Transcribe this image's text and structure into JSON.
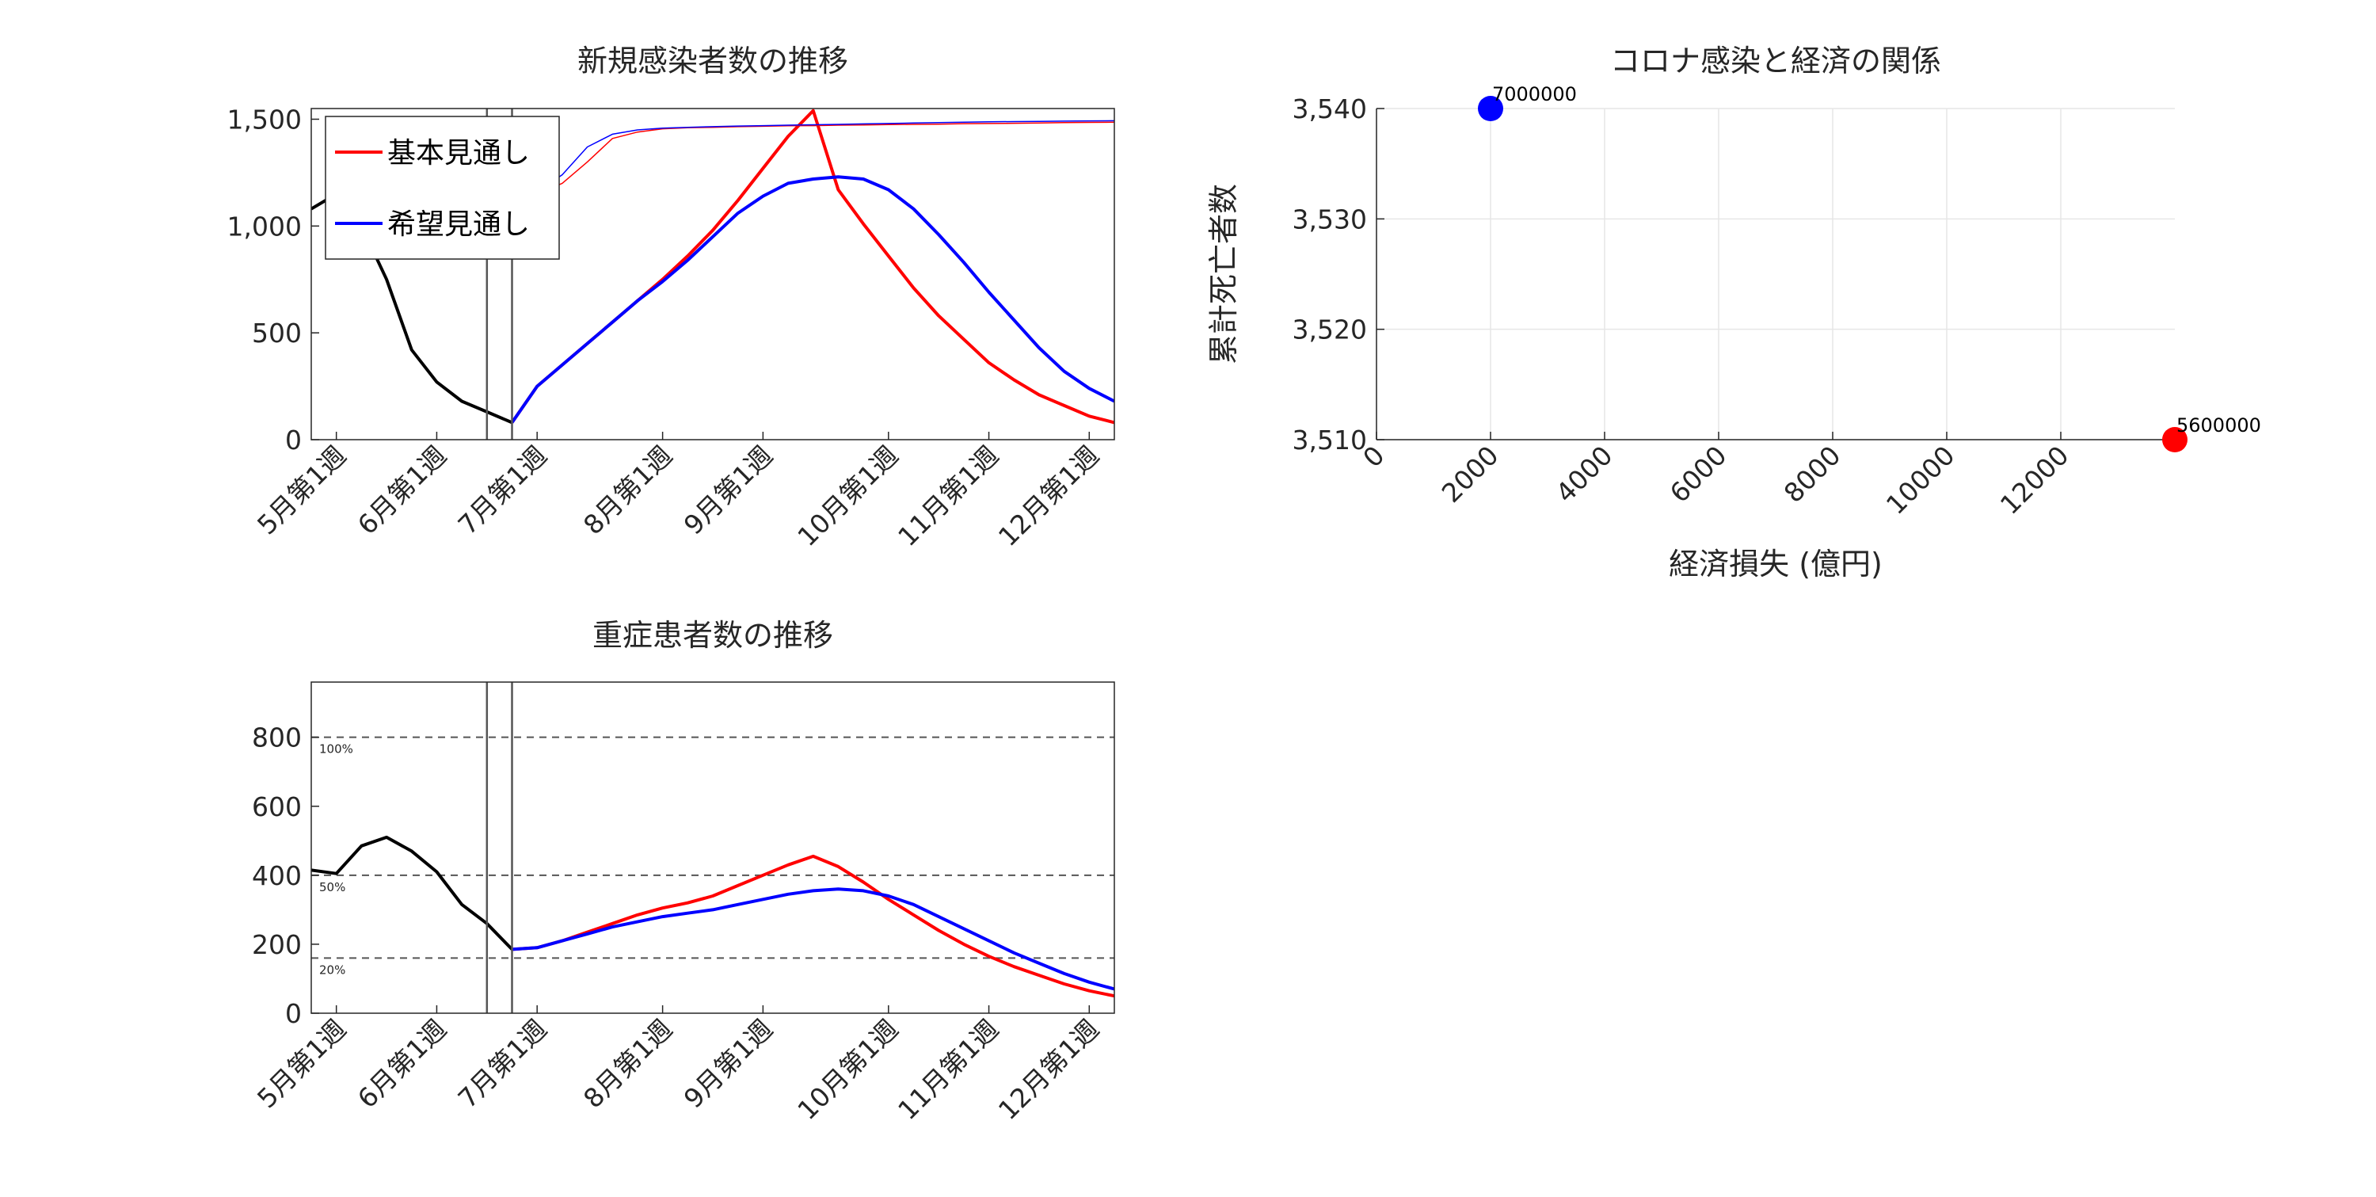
{
  "chart_data": [
    {
      "type": "line",
      "title": "新規感染者数の推移",
      "tick_labels": [
        "5月第1週",
        "6月第1週",
        "7月第1週",
        "8月第1週",
        "9月第1週",
        "10月第1週",
        "11月第1週",
        "12月第1週"
      ],
      "tick_weeks": [
        1,
        5,
        9,
        14,
        18,
        23,
        27,
        31
      ],
      "xlim": [
        0,
        32
      ],
      "ylim": [
        0,
        1550
      ],
      "yticks": [
        0,
        500,
        1000,
        1500
      ],
      "ytick_labels": [
        "0",
        "500",
        "1,000",
        "1,500"
      ],
      "vlines": [
        7,
        8
      ],
      "legend": {
        "position": "top-left",
        "entries": [
          "基本見通し",
          "希望見通し"
        ]
      },
      "series": [
        {
          "name": "",
          "color": "#000000",
          "x": [
            0,
            1,
            2,
            3,
            4,
            5,
            6,
            7,
            8
          ],
          "values": [
            1080,
            1150,
            1000,
            750,
            420,
            270,
            180,
            130,
            80
          ]
        },
        {
          "name": "基本見通し",
          "color": "#ff0000",
          "x": [
            8,
            9,
            10,
            11,
            12,
            13,
            14,
            15,
            16,
            17,
            18,
            19,
            20,
            21,
            22,
            23,
            24,
            25,
            26,
            27,
            28,
            29,
            30,
            31,
            32
          ],
          "values": [
            80,
            250,
            350,
            450,
            550,
            650,
            750,
            860,
            980,
            1120,
            1270,
            1420,
            1540,
            1170,
            1010,
            860,
            710,
            580,
            470,
            360,
            280,
            210,
            160,
            110,
            80
          ]
        },
        {
          "name": "希望見通し",
          "color": "#0000ff",
          "x": [
            8,
            9,
            10,
            11,
            12,
            13,
            14,
            15,
            16,
            17,
            18,
            19,
            20,
            21,
            22,
            23,
            24,
            25,
            26,
            27,
            28,
            29,
            30,
            31,
            32
          ],
          "values": [
            80,
            250,
            350,
            450,
            550,
            650,
            740,
            840,
            950,
            1060,
            1140,
            1200,
            1220,
            1230,
            1220,
            1170,
            1080,
            960,
            830,
            690,
            560,
            430,
            320,
            240,
            180
          ]
        },
        {
          "name": "",
          "color": "#ff0000",
          "thin": true,
          "x": [
            8,
            9,
            10,
            11,
            12,
            13,
            14,
            15,
            16,
            17,
            18,
            19,
            20,
            21,
            22,
            23,
            24,
            25,
            26,
            27,
            28,
            29,
            30,
            31,
            32
          ],
          "values": [
            1100,
            1150,
            1200,
            1300,
            1410,
            1440,
            1455,
            1460,
            1462,
            1465,
            1467,
            1469,
            1470,
            1472,
            1473,
            1475,
            1476,
            1477,
            1479,
            1480,
            1481,
            1482,
            1484,
            1485,
            1486
          ]
        },
        {
          "name": "",
          "color": "#0000ff",
          "thin": true,
          "x": [
            8,
            9,
            10,
            11,
            12,
            13,
            14,
            15,
            16,
            17,
            18,
            19,
            20,
            21,
            22,
            23,
            24,
            25,
            26,
            27,
            28,
            29,
            30,
            31,
            32
          ],
          "values": [
            1100,
            1160,
            1240,
            1370,
            1430,
            1450,
            1458,
            1462,
            1465,
            1468,
            1470,
            1472,
            1474,
            1476,
            1478,
            1480,
            1482,
            1484,
            1486,
            1488,
            1489,
            1490,
            1491,
            1492,
            1493
          ]
        }
      ]
    },
    {
      "type": "line",
      "title": "重症患者数の推移",
      "tick_labels": [
        "5月第1週",
        "6月第1週",
        "7月第1週",
        "8月第1週",
        "9月第1週",
        "10月第1週",
        "11月第1週",
        "12月第1週"
      ],
      "tick_weeks": [
        1,
        5,
        9,
        14,
        18,
        23,
        27,
        31
      ],
      "xlim": [
        0,
        32
      ],
      "ylim": [
        0,
        960
      ],
      "yticks": [
        0,
        200,
        400,
        600,
        800
      ],
      "ytick_labels": [
        "0",
        "200",
        "400",
        "600",
        "800"
      ],
      "vlines": [
        7,
        8
      ],
      "hlines": [
        {
          "y": 800,
          "label": "100%"
        },
        {
          "y": 400,
          "label": "50%"
        },
        {
          "y": 160,
          "label": "20%"
        }
      ],
      "series": [
        {
          "name": "",
          "color": "#000000",
          "x": [
            0,
            1,
            2,
            3,
            4,
            5,
            6,
            7,
            8
          ],
          "values": [
            415,
            405,
            485,
            510,
            470,
            410,
            315,
            260,
            185
          ]
        },
        {
          "name": "",
          "color": "#ff0000",
          "x": [
            8,
            9,
            10,
            11,
            12,
            13,
            14,
            15,
            16,
            17,
            18,
            19,
            20,
            21,
            22,
            23,
            24,
            25,
            26,
            27,
            28,
            29,
            30,
            31,
            32
          ],
          "values": [
            185,
            190,
            210,
            235,
            260,
            285,
            305,
            320,
            340,
            370,
            400,
            430,
            455,
            425,
            380,
            330,
            285,
            240,
            200,
            165,
            135,
            110,
            85,
            65,
            50
          ]
        },
        {
          "name": "",
          "color": "#0000ff",
          "x": [
            8,
            9,
            10,
            11,
            12,
            13,
            14,
            15,
            16,
            17,
            18,
            19,
            20,
            21,
            22,
            23,
            24,
            25,
            26,
            27,
            28,
            29,
            30,
            31,
            32
          ],
          "values": [
            185,
            190,
            210,
            230,
            250,
            265,
            280,
            290,
            300,
            315,
            330,
            345,
            355,
            360,
            355,
            340,
            315,
            280,
            245,
            210,
            175,
            145,
            115,
            90,
            70
          ]
        }
      ]
    },
    {
      "type": "scatter",
      "title": "コロナ感染と経済の関係",
      "xlabel": "経済損失 (億円)",
      "ylabel": "累計死亡者数",
      "xlim": [
        0,
        14000
      ],
      "ylim": [
        3510,
        3540
      ],
      "xticks": [
        0,
        2000,
        4000,
        6000,
        8000,
        10000,
        12000
      ],
      "xtick_labels": [
        "0",
        "2000",
        "4000",
        "6000",
        "8000",
        "10000",
        "12000"
      ],
      "yticks": [
        3510,
        3520,
        3530,
        3540
      ],
      "ytick_labels": [
        "3,510",
        "3,520",
        "3,530",
        "3,540"
      ],
      "grid": true,
      "points": [
        {
          "x": 2000,
          "y": 3540,
          "label": "7000000",
          "color": "#0000ff"
        },
        {
          "x": 14000,
          "y": 3510,
          "label": "5600000",
          "color": "#ff0000"
        }
      ]
    }
  ]
}
